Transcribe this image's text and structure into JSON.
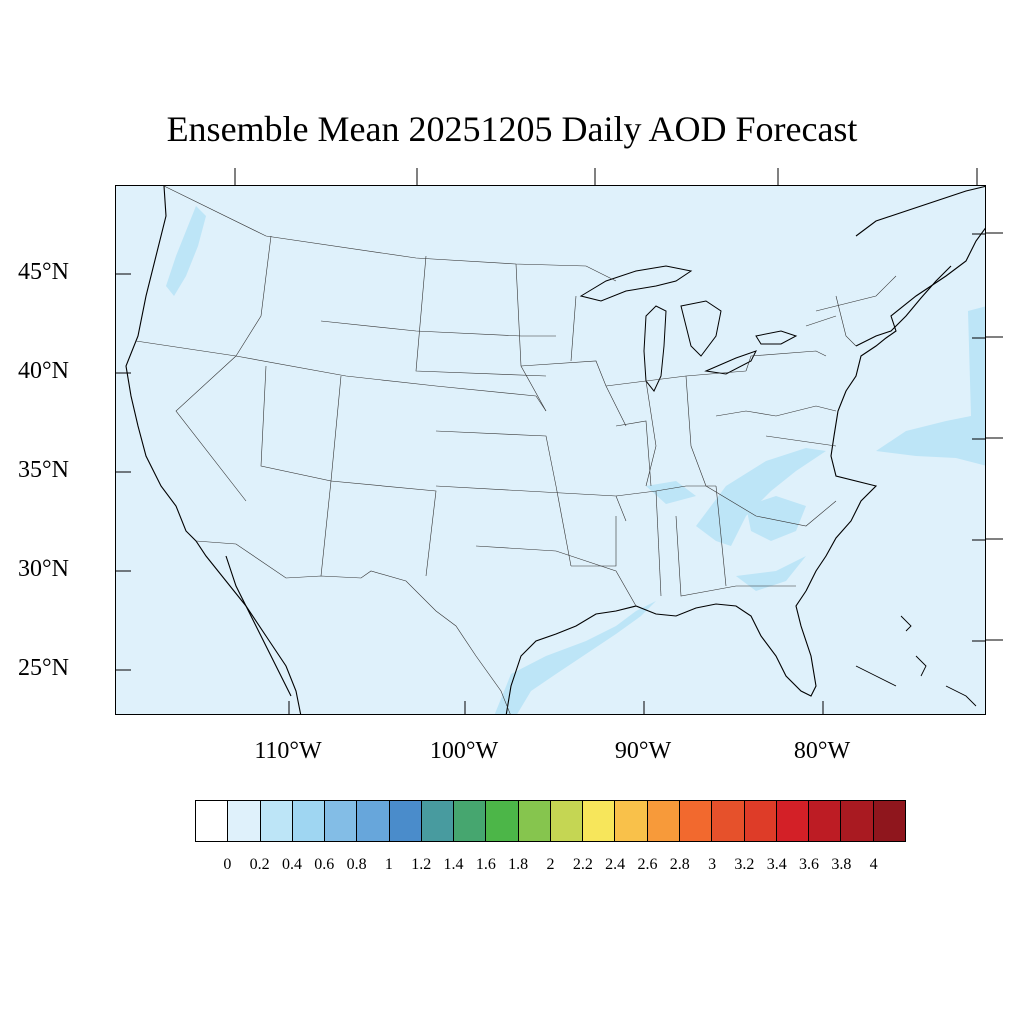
{
  "title": "Ensemble Mean 20251205 Daily AOD Forecast",
  "latitude_labels": [
    "45°N",
    "40°N",
    "35°N",
    "30°N",
    "25°N"
  ],
  "longitude_labels": [
    "110°W",
    "100°W",
    "90°W",
    "80°W"
  ],
  "colorbar": {
    "labels": [
      "0",
      "0.2",
      "0.4",
      "0.6",
      "0.8",
      "1",
      "1.2",
      "1.4",
      "1.6",
      "1.8",
      "2",
      "2.2",
      "2.4",
      "2.6",
      "2.8",
      "3",
      "3.2",
      "3.4",
      "3.6",
      "3.8",
      "4"
    ],
    "colors": [
      "#ffffff",
      "#dff1fb",
      "#bde5f7",
      "#9fd6f2",
      "#83bde6",
      "#67a6db",
      "#4a8ccb",
      "#489b9f",
      "#46a66f",
      "#4cb648",
      "#86c54e",
      "#c5d653",
      "#f7e65b",
      "#f9c14a",
      "#f79a3a",
      "#f2692e",
      "#e6512b",
      "#de3c28",
      "#d32027",
      "#bd1c24",
      "#a91a21",
      "#8f161d"
    ]
  },
  "map": {
    "background_color": "#dff1fb",
    "plume_color": "#bde5f7",
    "region": "Contiguous United States"
  }
}
